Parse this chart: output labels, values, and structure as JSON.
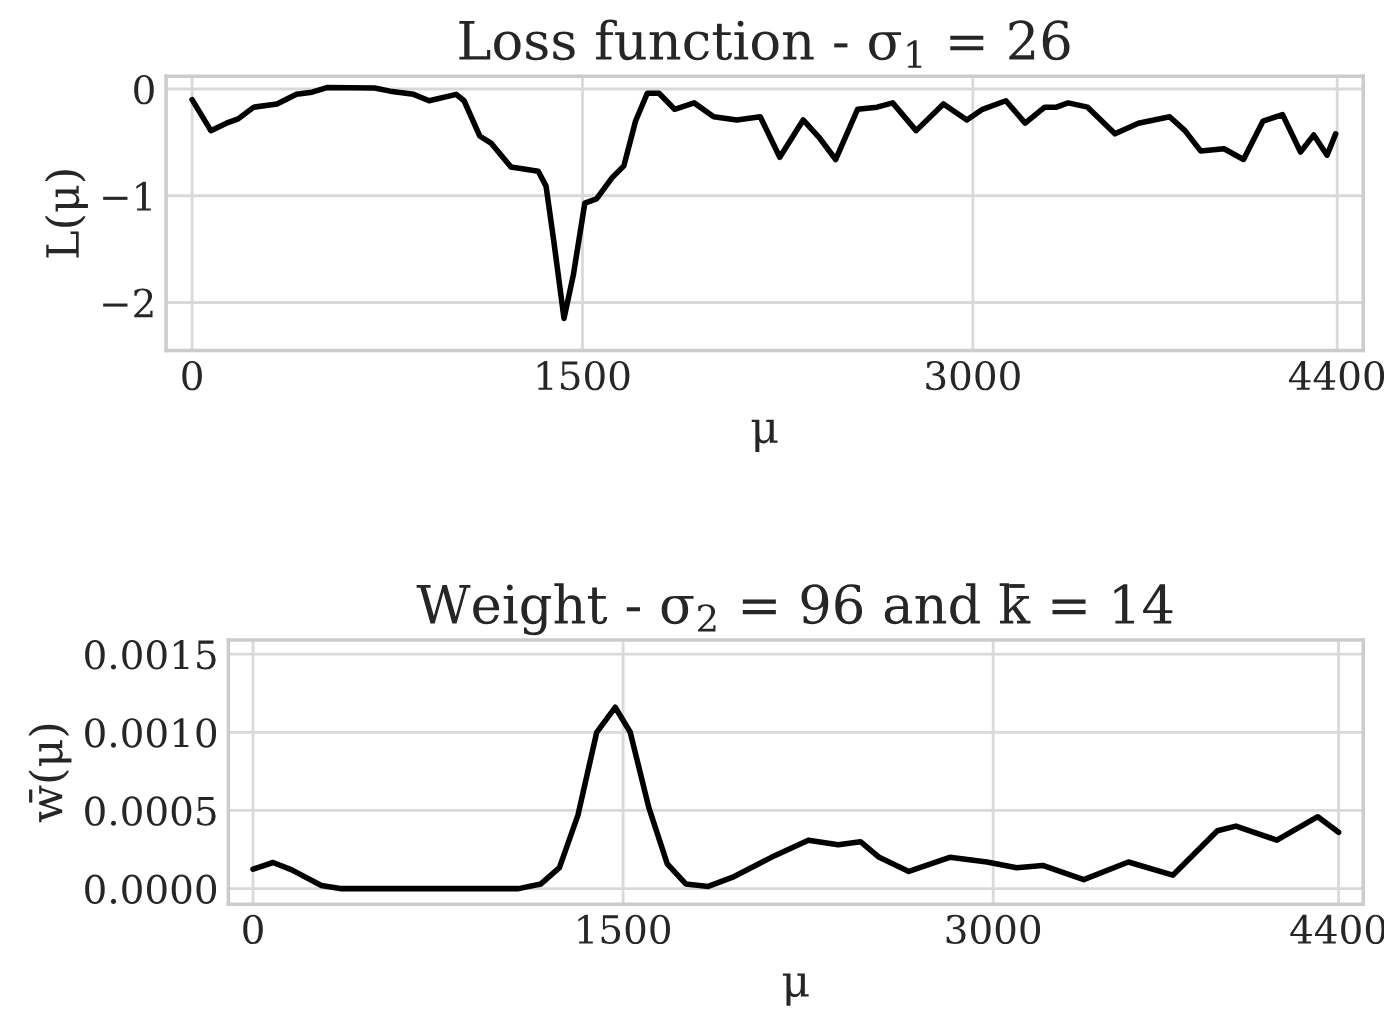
{
  "chart_data": [
    {
      "type": "line",
      "title": "Loss function - σ$_{1}$ = 26",
      "xlabel": "μ",
      "ylabel": "L(μ)",
      "xlim": [
        -100,
        4500
      ],
      "xticks": [
        0,
        1500,
        3000,
        4400
      ],
      "ylim": [
        -2.45,
        0.12
      ],
      "yticks": [
        0,
        {
          "value": -1,
          "label": "−1"
        },
        {
          "value": -2,
          "label": "−2"
        }
      ],
      "grid": true,
      "series": [
        {
          "color": "#000000",
          "x": [
            0,
            72,
            132,
            177,
            237,
            326,
            401,
            461,
            521,
            701,
            761,
            851,
            911,
            1015,
            1045,
            1105,
            1150,
            1225,
            1330,
            1360,
            1390,
            1429,
            1465,
            1509,
            1554,
            1614,
            1659,
            1704,
            1749,
            1794,
            1854,
            1929,
            2004,
            2093,
            2183,
            2258,
            2348,
            2408,
            2473,
            2557,
            2632,
            2692,
            2782,
            2887,
            2977,
            3037,
            3127,
            3201,
            3276,
            3321,
            3366,
            3441,
            3546,
            3636,
            3756,
            3815,
            3875,
            3965,
            4040,
            4115,
            4190,
            4259,
            4310,
            4361,
            4394
          ],
          "values": [
            -0.1,
            -0.39,
            -0.32,
            -0.28,
            -0.17,
            -0.14,
            -0.05,
            -0.03,
            0.015,
            0.01,
            -0.02,
            -0.05,
            -0.11,
            -0.05,
            -0.11,
            -0.44,
            -0.51,
            -0.73,
            -0.77,
            -0.91,
            -1.43,
            -2.15,
            -1.74,
            -1.07,
            -1.03,
            -0.83,
            -0.72,
            -0.3,
            -0.04,
            -0.04,
            -0.19,
            -0.13,
            -0.26,
            -0.29,
            -0.26,
            -0.64,
            -0.29,
            -0.45,
            -0.66,
            -0.19,
            -0.17,
            -0.13,
            -0.39,
            -0.14,
            -0.29,
            -0.19,
            -0.11,
            -0.32,
            -0.17,
            -0.17,
            -0.13,
            -0.17,
            -0.42,
            -0.32,
            -0.26,
            -0.39,
            -0.58,
            -0.56,
            -0.66,
            -0.3,
            -0.24,
            -0.59,
            -0.43,
            -0.62,
            -0.42
          ]
        }
      ]
    },
    {
      "type": "line",
      "title": "Weight - σ$_{2}$ = 96 and k̄ = 14",
      "xlabel": "μ",
      "ylabel": "w̄(μ)",
      "xlim": [
        -100,
        4500
      ],
      "xticks": [
        0,
        1500,
        3000,
        4400
      ],
      "ylim": [
        -0.0001,
        0.00159
      ],
      "yticks": [
        {
          "value": 0,
          "label": "0.0000"
        },
        {
          "value": 0.0005,
          "label": "0.0005"
        },
        {
          "value": 0.001,
          "label": "0.0010"
        },
        {
          "value": 0.0015,
          "label": "0.0015"
        }
      ],
      "grid": true,
      "series": [
        {
          "color": "#000000",
          "x": [
            0,
            81,
            157,
            277,
            353,
            1076,
            1167,
            1242,
            1317,
            1393,
            1468,
            1529,
            1604,
            1679,
            1754,
            1845,
            1950,
            2101,
            2251,
            2372,
            2462,
            2538,
            2658,
            2824,
            2975,
            3095,
            3201,
            3367,
            3548,
            3728,
            3909,
            3984,
            4150,
            4316,
            4400
          ],
          "values": [
            0.000124,
            0.000167,
            0.00012,
            2e-05,
            0,
            0,
            3e-05,
            0.000134,
            0.00047,
            0.001,
            0.00116,
            0.001,
            0.00052,
            0.000158,
            3e-05,
            1.4e-05,
            7.7e-05,
            0.0002,
            0.00031,
            0.00028,
            0.0003,
            0.0002,
            0.00011,
            0.0002,
            0.00017,
            0.000134,
            0.000148,
            5.7e-05,
            0.00017,
            8.6e-05,
            0.00037,
            0.0004,
            0.00031,
            0.00046,
            0.00036
          ]
        }
      ]
    }
  ]
}
